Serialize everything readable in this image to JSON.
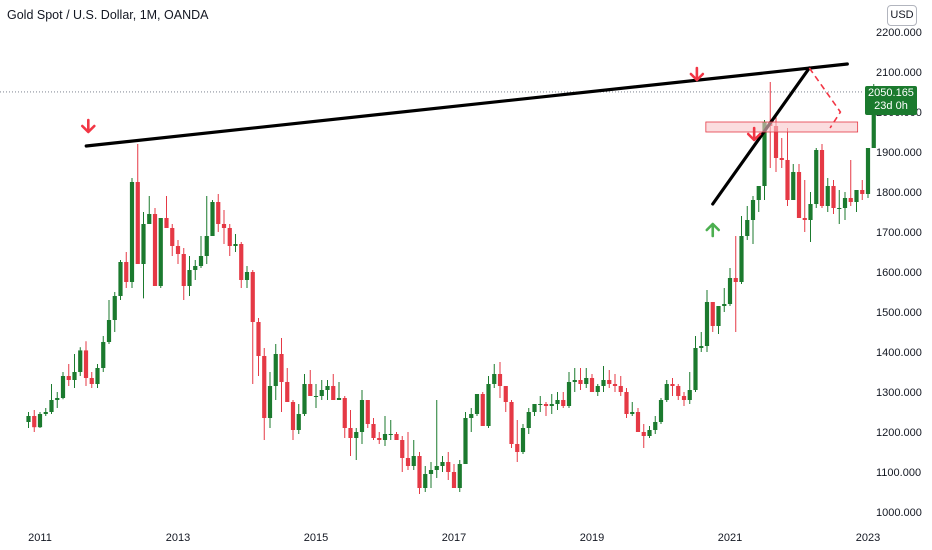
{
  "header": {
    "title": "Gold Spot / U.S. Dollar, 1M, OANDA",
    "currency": "USD"
  },
  "price_tag": {
    "price": "2050.165",
    "countdown": "23d 0h"
  },
  "colors": {
    "up": "#1b7a2e",
    "down": "#e53945",
    "trendline": "#000000",
    "arrow_down": "#f23645",
    "arrow_up": "#4caf50",
    "zone": "#f8c6c9"
  },
  "chart_data": {
    "type": "candlestick",
    "title": "Gold Spot / U.S. Dollar, 1M, OANDA",
    "xlabel": "",
    "ylabel": "",
    "x_ticks": [
      "2011",
      "2013",
      "2015",
      "2017",
      "2019",
      "2021",
      "2023"
    ],
    "y_ticks": [
      "1000.000",
      "1100.000",
      "1200.000",
      "1300.000",
      "1400.000",
      "1500.000",
      "1600.000",
      "1700.000",
      "1800.000",
      "1900.000",
      "2000.000",
      "2100.000",
      "2200.000"
    ],
    "ylim": [
      975,
      2225
    ],
    "xlim": [
      2010.0,
      2022.9
    ],
    "grid": false,
    "last_price": 2050.165,
    "series": [
      {
        "values": [
          [
            1225,
            1250,
            1210,
            1240
          ],
          [
            1240,
            1255,
            1200,
            1212
          ],
          [
            1212,
            1250,
            1210,
            1245
          ],
          [
            1245,
            1260,
            1240,
            1250
          ],
          [
            1250,
            1320,
            1245,
            1280
          ],
          [
            1280,
            1300,
            1260,
            1285
          ],
          [
            1285,
            1350,
            1282,
            1340
          ],
          [
            1340,
            1370,
            1315,
            1330
          ],
          [
            1330,
            1395,
            1310,
            1350
          ],
          [
            1350,
            1412,
            1340,
            1404
          ],
          [
            1404,
            1427,
            1315,
            1335
          ],
          [
            1335,
            1350,
            1310,
            1320
          ],
          [
            1320,
            1370,
            1310,
            1360
          ],
          [
            1360,
            1440,
            1350,
            1425
          ],
          [
            1425,
            1530,
            1420,
            1480
          ],
          [
            1480,
            1550,
            1450,
            1540
          ],
          [
            1540,
            1630,
            1530,
            1625
          ],
          [
            1625,
            1650,
            1560,
            1575
          ],
          [
            1575,
            1835,
            1560,
            1825
          ],
          [
            1825,
            1920,
            1620,
            1620
          ],
          [
            1620,
            1750,
            1534,
            1720
          ],
          [
            1720,
            1790,
            1720,
            1745
          ],
          [
            1745,
            1760,
            1600,
            1565
          ],
          [
            1565,
            1700,
            1560,
            1735
          ],
          [
            1735,
            1790,
            1730,
            1710
          ],
          [
            1710,
            1720,
            1640,
            1665
          ],
          [
            1665,
            1680,
            1620,
            1645
          ],
          [
            1645,
            1660,
            1530,
            1565
          ],
          [
            1565,
            1640,
            1540,
            1605
          ],
          [
            1605,
            1630,
            1580,
            1615
          ],
          [
            1615,
            1690,
            1610,
            1640
          ],
          [
            1640,
            1790,
            1620,
            1690
          ],
          [
            1690,
            1780,
            1735,
            1775
          ],
          [
            1775,
            1795,
            1700,
            1720
          ],
          [
            1720,
            1755,
            1670,
            1710
          ],
          [
            1710,
            1720,
            1640,
            1665
          ],
          [
            1665,
            1695,
            1650,
            1670
          ],
          [
            1670,
            1675,
            1560,
            1580
          ],
          [
            1580,
            1615,
            1560,
            1600
          ],
          [
            1600,
            1605,
            1320,
            1475
          ],
          [
            1475,
            1485,
            1340,
            1390
          ],
          [
            1390,
            1410,
            1180,
            1235
          ],
          [
            1235,
            1350,
            1210,
            1315
          ],
          [
            1315,
            1420,
            1280,
            1395
          ],
          [
            1395,
            1435,
            1250,
            1325
          ],
          [
            1325,
            1360,
            1280,
            1275
          ],
          [
            1275,
            1280,
            1180,
            1205
          ],
          [
            1205,
            1270,
            1195,
            1245
          ],
          [
            1245,
            1345,
            1240,
            1320
          ],
          [
            1320,
            1355,
            1300,
            1290
          ],
          [
            1290,
            1320,
            1260,
            1290
          ],
          [
            1290,
            1330,
            1280,
            1305
          ],
          [
            1305,
            1330,
            1280,
            1315
          ],
          [
            1315,
            1345,
            1280,
            1280
          ],
          [
            1280,
            1325,
            1280,
            1285
          ],
          [
            1285,
            1290,
            1185,
            1210
          ],
          [
            1210,
            1255,
            1140,
            1185
          ],
          [
            1185,
            1210,
            1130,
            1200
          ],
          [
            1200,
            1305,
            1170,
            1280
          ],
          [
            1280,
            1225,
            1210,
            1220
          ],
          [
            1220,
            1235,
            1180,
            1185
          ],
          [
            1185,
            1200,
            1170,
            1180
          ],
          [
            1180,
            1240,
            1165,
            1195
          ],
          [
            1195,
            1230,
            1180,
            1195
          ],
          [
            1195,
            1200,
            1180,
            1180
          ],
          [
            1180,
            1190,
            1100,
            1135
          ],
          [
            1135,
            1200,
            1105,
            1115
          ],
          [
            1115,
            1180,
            1105,
            1140
          ],
          [
            1140,
            1150,
            1045,
            1060
          ],
          [
            1060,
            1115,
            1050,
            1095
          ],
          [
            1095,
            1125,
            1060,
            1105
          ],
          [
            1105,
            1280,
            1085,
            1115
          ],
          [
            1115,
            1140,
            1100,
            1125
          ],
          [
            1125,
            1150,
            1080,
            1100
          ],
          [
            1100,
            1120,
            1060,
            1060
          ],
          [
            1060,
            1130,
            1050,
            1120
          ],
          [
            1120,
            1250,
            1120,
            1235
          ],
          [
            1235,
            1260,
            1200,
            1245
          ],
          [
            1245,
            1280,
            1240,
            1295
          ],
          [
            1295,
            1300,
            1220,
            1215
          ],
          [
            1215,
            1340,
            1210,
            1320
          ],
          [
            1320,
            1370,
            1310,
            1345
          ],
          [
            1345,
            1375,
            1285,
            1315
          ],
          [
            1315,
            1310,
            1250,
            1275
          ],
          [
            1275,
            1280,
            1160,
            1170
          ],
          [
            1170,
            1230,
            1125,
            1150
          ],
          [
            1150,
            1220,
            1145,
            1210
          ],
          [
            1210,
            1260,
            1195,
            1250
          ],
          [
            1250,
            1265,
            1240,
            1270
          ],
          [
            1270,
            1290,
            1250,
            1270
          ],
          [
            1270,
            1275,
            1240,
            1265
          ],
          [
            1265,
            1295,
            1245,
            1270
          ],
          [
            1270,
            1300,
            1255,
            1280
          ],
          [
            1280,
            1300,
            1260,
            1265
          ],
          [
            1265,
            1350,
            1260,
            1325
          ],
          [
            1325,
            1360,
            1300,
            1330
          ],
          [
            1330,
            1360,
            1305,
            1320
          ],
          [
            1320,
            1360,
            1310,
            1335
          ],
          [
            1335,
            1345,
            1300,
            1300
          ],
          [
            1300,
            1320,
            1290,
            1315
          ],
          [
            1315,
            1365,
            1300,
            1330
          ],
          [
            1330,
            1355,
            1310,
            1320
          ],
          [
            1320,
            1345,
            1300,
            1315
          ],
          [
            1315,
            1340,
            1290,
            1300
          ],
          [
            1300,
            1310,
            1235,
            1245
          ],
          [
            1245,
            1275,
            1240,
            1250
          ],
          [
            1250,
            1260,
            1200,
            1200
          ],
          [
            1200,
            1220,
            1160,
            1190
          ],
          [
            1190,
            1215,
            1185,
            1205
          ],
          [
            1205,
            1240,
            1195,
            1225
          ],
          [
            1225,
            1285,
            1220,
            1280
          ],
          [
            1280,
            1330,
            1275,
            1320
          ],
          [
            1320,
            1335,
            1290,
            1315
          ],
          [
            1315,
            1320,
            1280,
            1290
          ],
          [
            1290,
            1300,
            1265,
            1280
          ],
          [
            1280,
            1350,
            1270,
            1305
          ],
          [
            1305,
            1440,
            1300,
            1410
          ],
          [
            1410,
            1450,
            1400,
            1415
          ],
          [
            1415,
            1555,
            1400,
            1525
          ],
          [
            1525,
            1525,
            1450,
            1465
          ],
          [
            1465,
            1515,
            1445,
            1515
          ],
          [
            1515,
            1560,
            1500,
            1520
          ],
          [
            1520,
            1610,
            1515,
            1585
          ],
          [
            1585,
            1690,
            1450,
            1575
          ],
          [
            1575,
            1740,
            1570,
            1690
          ],
          [
            1690,
            1765,
            1680,
            1730
          ],
          [
            1730,
            1790,
            1670,
            1780
          ],
          [
            1780,
            1790,
            1750,
            1815
          ],
          [
            1815,
            1980,
            1780,
            1975
          ],
          [
            1975,
            2075,
            1860,
            1965
          ],
          [
            1965,
            1990,
            1850,
            1885
          ],
          [
            1885,
            1935,
            1860,
            1880
          ],
          [
            1880,
            1960,
            1765,
            1780
          ],
          [
            1780,
            1870,
            1800,
            1850
          ],
          [
            1850,
            1870,
            1785,
            1735
          ],
          [
            1735,
            1830,
            1700,
            1730
          ],
          [
            1730,
            1800,
            1675,
            1770
          ],
          [
            1770,
            1910,
            1760,
            1905
          ],
          [
            1905,
            1920,
            1760,
            1765
          ],
          [
            1765,
            1835,
            1750,
            1815
          ],
          [
            1815,
            1830,
            1745,
            1760
          ],
          [
            1760,
            1805,
            1720,
            1760
          ],
          [
            1760,
            1800,
            1730,
            1785
          ],
          [
            1785,
            1880,
            1765,
            1775
          ],
          [
            1775,
            1800,
            1750,
            1805
          ],
          [
            1805,
            1830,
            1780,
            1795
          ],
          [
            1795,
            1900,
            1785,
            1910
          ],
          [
            1910,
            2070,
            1910,
            2050
          ]
        ]
      }
    ],
    "annotations": [
      {
        "type": "trendline",
        "from": [
          2011.67,
          1915
        ],
        "to": [
          2022.7,
          2120
        ]
      },
      {
        "type": "trendline",
        "from": [
          2020.75,
          1770
        ],
        "to": [
          2022.15,
          2110
        ]
      },
      {
        "type": "dotted_line",
        "price": 2050.165
      },
      {
        "type": "resistance_zone",
        "x": [
          2020.65,
          2022.85
        ],
        "y": [
          1950,
          1975
        ]
      },
      {
        "type": "arrow_down",
        "at": [
          2011.7,
          1945
        ]
      },
      {
        "type": "arrow_down",
        "at": [
          2020.52,
          2075
        ]
      },
      {
        "type": "arrow_down",
        "at": [
          2021.35,
          1925
        ]
      },
      {
        "type": "arrow_up",
        "at": [
          2020.75,
          1725
        ]
      },
      {
        "type": "projection_dashed",
        "points": [
          [
            2022.15,
            2110
          ],
          [
            2022.6,
            2000
          ],
          [
            2022.45,
            1960
          ]
        ]
      }
    ]
  }
}
